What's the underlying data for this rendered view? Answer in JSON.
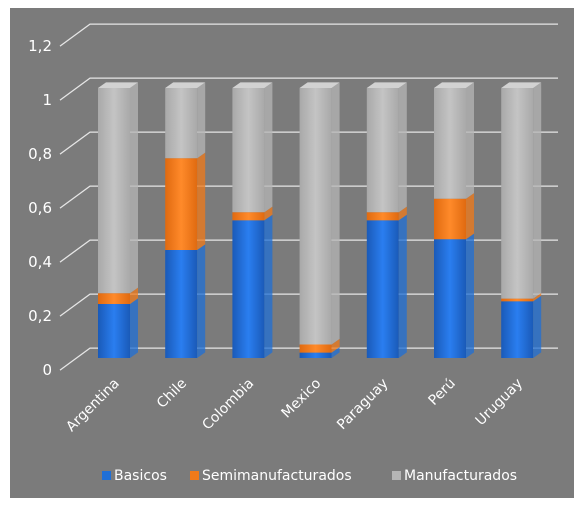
{
  "chart_data": {
    "type": "bar",
    "stacked": true,
    "percent": true,
    "categories": [
      "Argentina",
      "Chile",
      "Colombia",
      "Mexico",
      "Paraguay",
      "Perú",
      "Uruguay"
    ],
    "series": [
      {
        "name": "Basicos",
        "values": [
          0.2,
          0.4,
          0.51,
          0.02,
          0.51,
          0.44,
          0.21
        ],
        "color": "#1f6fd6"
      },
      {
        "name": "Semimanufacturados",
        "values": [
          0.04,
          0.34,
          0.03,
          0.03,
          0.03,
          0.15,
          0.01
        ],
        "color": "#f07a1a"
      },
      {
        "name": "Manufacturados",
        "values": [
          0.76,
          0.26,
          0.46,
          0.95,
          0.46,
          0.41,
          0.78
        ],
        "color": "#b5b5b5"
      }
    ],
    "y_ticks": [
      "0",
      "0,2",
      "0,4",
      "0,6",
      "0,8",
      "1",
      "1,2"
    ],
    "ylim": [
      0,
      1.2
    ],
    "grid": true,
    "legend_position": "bottom",
    "background": "#7b7b7b"
  }
}
